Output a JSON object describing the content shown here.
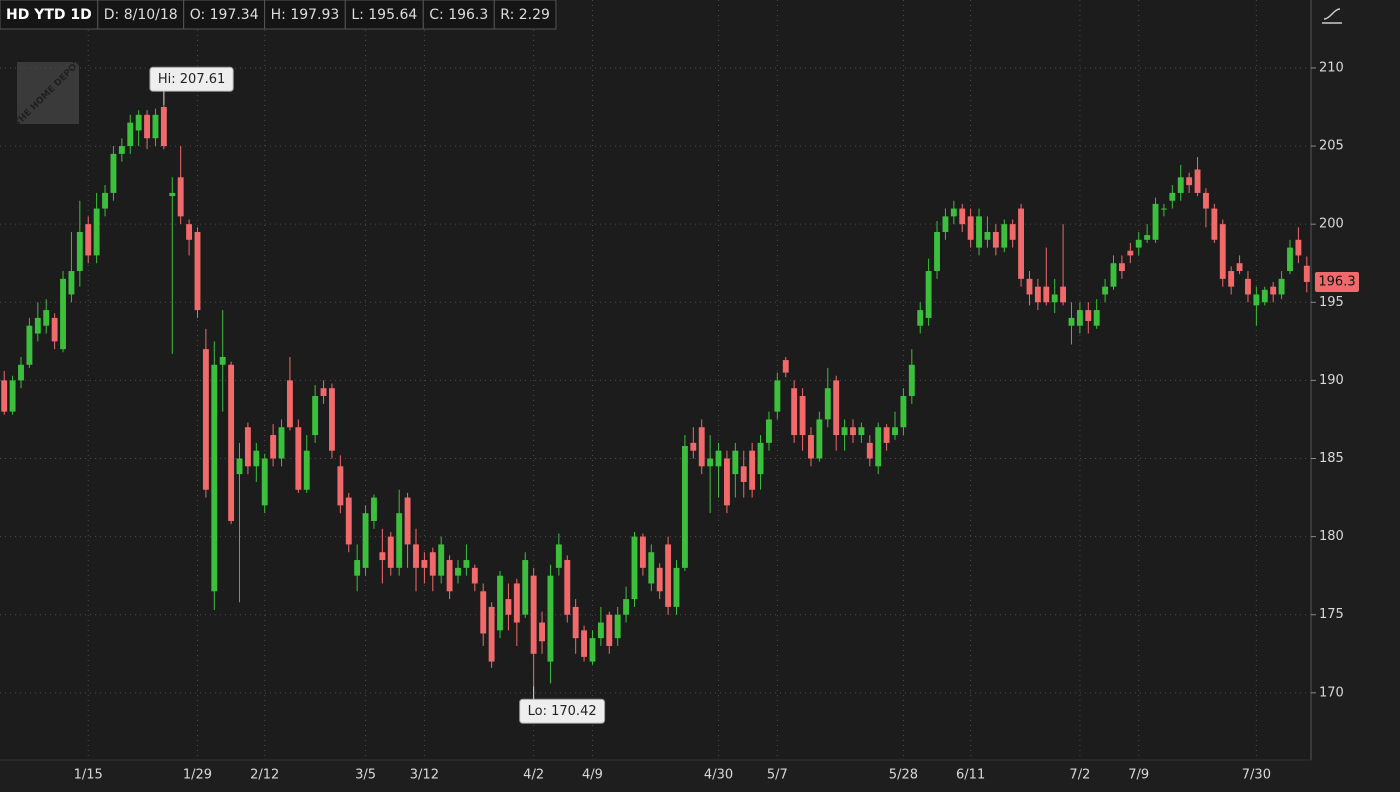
{
  "chart_data": {
    "type": "candlestick",
    "info": [
      "HD YTD 1D",
      "D: 8/10/18",
      "O: 197.34",
      "H: 197.93",
      "L: 195.64",
      "C: 196.3",
      "R: 2.29"
    ],
    "logo": "THE HOME DEPOT",
    "high_label": "Hi: 207.61",
    "low_label": "Lo: 170.42",
    "last_label": "196.3",
    "up_color": "#3cbf3c",
    "down_color": "#f06a6b",
    "grid": true,
    "ylim": [
      165.7,
      214.35
    ],
    "yticks": [
      170,
      175,
      180,
      185,
      190,
      195,
      200,
      205,
      210
    ],
    "categories": [
      null,
      null,
      null,
      null,
      null,
      null,
      null,
      null,
      null,
      null,
      "1/15",
      null,
      null,
      null,
      null,
      null,
      null,
      null,
      null,
      null,
      null,
      null,
      null,
      "1/29",
      null,
      null,
      null,
      null,
      null,
      null,
      null,
      "2/12",
      null,
      null,
      null,
      null,
      null,
      null,
      null,
      null,
      null,
      null,
      null,
      "3/5",
      null,
      null,
      null,
      null,
      null,
      null,
      "3/12",
      null,
      null,
      null,
      null,
      null,
      null,
      null,
      null,
      null,
      null,
      null,
      null,
      "4/2",
      null,
      null,
      null,
      null,
      null,
      null,
      "4/9",
      null,
      null,
      null,
      null,
      null,
      null,
      null,
      null,
      null,
      null,
      null,
      null,
      null,
      null,
      "4/30",
      null,
      null,
      null,
      null,
      null,
      null,
      "5/7",
      null,
      null,
      null,
      null,
      null,
      null,
      null,
      null,
      null,
      null,
      null,
      null,
      null,
      null,
      "5/28",
      null,
      null,
      null,
      null,
      null,
      null,
      null,
      "6/11",
      null,
      null,
      null,
      null,
      null,
      null,
      null,
      null,
      null,
      null,
      null,
      null,
      "7/2",
      null,
      null,
      null,
      null,
      null,
      null,
      "7/9",
      null,
      null,
      null,
      null,
      null,
      null,
      null,
      null,
      null,
      null,
      null,
      null,
      null,
      "7/30",
      null,
      null,
      null,
      null,
      null,
      null
    ],
    "open": [
      190,
      188,
      190,
      191,
      193,
      193.5,
      194,
      192,
      195.5,
      197,
      200,
      198,
      201,
      202,
      204.5,
      205,
      206,
      207,
      205.5,
      207.5,
      201.8,
      203,
      200,
      199.5,
      192,
      176.5,
      191,
      191,
      184,
      187,
      184.5,
      182,
      186.5,
      185,
      190,
      187,
      183,
      186.5,
      189.5,
      189.5,
      184.5,
      182.5,
      177.5,
      178,
      181,
      179,
      180,
      178,
      182.5,
      179.5,
      178.5,
      179,
      177.5,
      178.5,
      177.5,
      178,
      178,
      176.5,
      175.5,
      174,
      176,
      177,
      175,
      177.5,
      174.5,
      172,
      178,
      178.5,
      175.5,
      174,
      172,
      173.5,
      175,
      173.5,
      175,
      176,
      180,
      177,
      178,
      179.5,
      175.5,
      178,
      186,
      187,
      184.5,
      184.5,
      185,
      184,
      184.5,
      185.5,
      184,
      186,
      188,
      191.3,
      189.5,
      189,
      186.5,
      185,
      187.5,
      190,
      186.5,
      187,
      186.5,
      186,
      184.5,
      187,
      186.5,
      187,
      189,
      193.5,
      194,
      197,
      199.5,
      200.5,
      201,
      200.5,
      198.5,
      199,
      199.5,
      198.5,
      200,
      201,
      196.5,
      196,
      196,
      195,
      196,
      193.5,
      193.5,
      194.5,
      193.5,
      195.5,
      196,
      197.5,
      198.3,
      198.5,
      199,
      199,
      201,
      201.5,
      202,
      203,
      203.5,
      202,
      201,
      200,
      197,
      197.5,
      196.5,
      194.8,
      195,
      196,
      195.5,
      197,
      199,
      197.34
    ],
    "high": [
      190.6,
      190.3,
      191.5,
      194,
      195,
      195.2,
      194.3,
      197,
      199.5,
      201.5,
      200.5,
      202,
      202.5,
      205,
      205.5,
      207,
      207.3,
      207.3,
      207.4,
      207.61,
      203,
      205,
      200.3,
      199.8,
      193.3,
      192.5,
      194.5,
      191.2,
      186,
      187.3,
      186,
      185.3,
      187.2,
      187.5,
      191.5,
      187.5,
      186.5,
      189.7,
      190,
      189.8,
      185.2,
      182.8,
      179.5,
      182,
      182.7,
      180.5,
      180.3,
      183,
      182.8,
      180.5,
      179,
      179.3,
      180,
      178.8,
      178.5,
      179.5,
      178.2,
      177,
      175.8,
      177.8,
      177,
      177.3,
      179,
      178,
      175.2,
      178.2,
      180.2,
      178.8,
      176,
      174.3,
      174,
      175.5,
      175.2,
      175.5,
      176.8,
      180.3,
      180.2,
      179.5,
      178.3,
      180,
      178.5,
      186.5,
      187,
      187.5,
      186.5,
      186,
      185.5,
      186,
      185.5,
      186,
      186.5,
      188,
      190.5,
      191.5,
      190,
      189.5,
      187,
      188,
      190.8,
      190.3,
      187.5,
      187.5,
      187.3,
      186.5,
      187.3,
      187.2,
      188,
      189.5,
      192,
      195,
      197.8,
      200.2,
      201,
      201.5,
      201.3,
      201,
      201,
      200.5,
      200,
      200.3,
      200.3,
      201.3,
      197,
      196.5,
      198.5,
      196.5,
      200,
      195,
      195,
      195,
      195.2,
      196.5,
      198,
      198,
      198.8,
      199.5,
      200,
      201.7,
      201.3,
      202.5,
      203.8,
      203.3,
      204.3,
      202.3,
      201.3,
      200.3,
      197.3,
      198,
      197,
      196,
      196,
      196.3,
      197,
      199,
      199.8,
      197.93
    ],
    "low": [
      187.8,
      187.8,
      189.5,
      190.8,
      192.5,
      193,
      192,
      191.8,
      195,
      196,
      197.5,
      197.5,
      200.5,
      201.5,
      204,
      204.5,
      205,
      204.8,
      205,
      204.8,
      191.7,
      200,
      198,
      194,
      182.5,
      175.3,
      188,
      180.8,
      175.8,
      184,
      183.5,
      181.5,
      184.5,
      184.5,
      186.8,
      182.8,
      182.8,
      186,
      188.5,
      185,
      181.5,
      179,
      176.5,
      177.5,
      180.5,
      177,
      177.5,
      177.5,
      178,
      176.5,
      177,
      176.5,
      177,
      176,
      177,
      177.5,
      176.5,
      173,
      171.6,
      173.5,
      174,
      173,
      174.8,
      170.42,
      172.5,
      170.6,
      177.5,
      174.5,
      172.5,
      172,
      171.8,
      173,
      172.5,
      173,
      174.5,
      175.5,
      177.5,
      176.5,
      176,
      175,
      175,
      177.8,
      185,
      184,
      181.5,
      182.5,
      181.5,
      182.5,
      182.5,
      182.5,
      183,
      185.5,
      187.5,
      190.2,
      186,
      185.5,
      184.5,
      184.8,
      187,
      185.5,
      185.5,
      186,
      186,
      184.5,
      184,
      185.5,
      186.2,
      186.5,
      188.5,
      193,
      193.5,
      196.5,
      199,
      200,
      199.5,
      198.5,
      198,
      198.5,
      198,
      198.2,
      198.5,
      196,
      194.8,
      194.5,
      194.8,
      194.3,
      194.8,
      192.3,
      193,
      193,
      193.3,
      195,
      195.8,
      196.5,
      197.5,
      198,
      198.8,
      198.8,
      200.5,
      201,
      201.5,
      202,
      201.8,
      199.8,
      198.8,
      196,
      195.5,
      196.8,
      195,
      193.5,
      194.8,
      195,
      195.2,
      196.8,
      197.5,
      195.64
    ],
    "close": [
      188,
      190,
      191,
      193.5,
      194,
      194.5,
      192.5,
      196.5,
      197,
      199.5,
      198,
      201,
      202,
      204.5,
      205,
      206.5,
      207,
      205.5,
      207,
      205,
      202,
      200.5,
      199,
      194.5,
      183,
      191,
      191.5,
      181,
      185,
      184.5,
      185.5,
      185,
      185,
      187,
      187,
      183,
      185.5,
      189,
      189,
      185.5,
      182,
      179.5,
      178.5,
      181.5,
      182.5,
      178.5,
      178,
      181.5,
      179.5,
      178,
      178,
      177.5,
      179.5,
      176.5,
      178,
      178.5,
      177,
      173.8,
      172,
      177.5,
      175,
      174.5,
      178.5,
      172.5,
      173.3,
      177.5,
      179.5,
      175,
      173.5,
      172.3,
      173.5,
      174.5,
      173,
      175,
      176,
      180,
      178,
      179,
      176.5,
      175.5,
      178,
      185.8,
      185.5,
      184.5,
      185,
      185.5,
      182,
      185.5,
      183.5,
      183,
      186,
      187.5,
      190,
      190.5,
      186.5,
      186.5,
      185,
      187.5,
      189.5,
      186.5,
      187,
      186.5,
      187,
      185,
      187,
      186,
      187,
      189,
      191,
      194.5,
      197,
      199.5,
      200.5,
      201,
      200,
      199,
      200.5,
      199.5,
      198.5,
      200,
      199,
      196.5,
      195.5,
      195,
      195,
      195.5,
      195,
      194,
      194.5,
      193.8,
      194.5,
      196,
      197.5,
      197,
      198,
      199,
      199.3,
      201.3,
      201,
      202,
      203,
      202.5,
      202,
      201,
      199,
      196.5,
      196,
      197,
      195.5,
      195.5,
      195.8,
      195.5,
      196.5,
      198.5,
      198,
      196.3
    ]
  }
}
